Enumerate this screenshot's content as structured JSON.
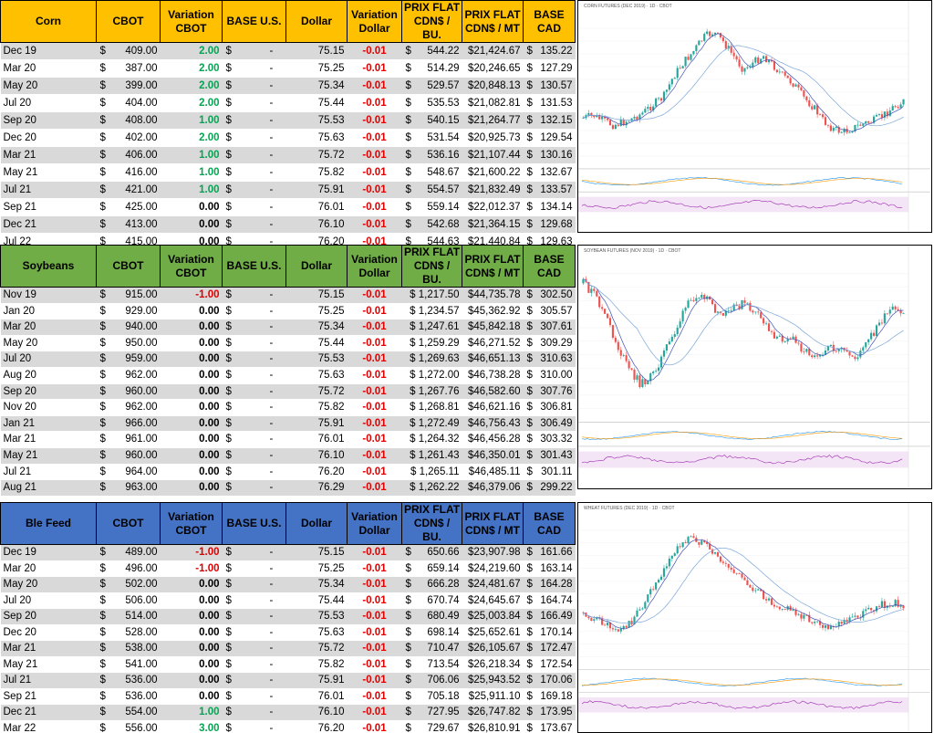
{
  "headers": {
    "cbot": "CBOT",
    "variation_cbot": [
      "Variation",
      "CBOT"
    ],
    "base_us": "BASE U.S.",
    "dollar": "Dollar",
    "variation_dollar": [
      "Variation",
      "Dollar"
    ],
    "prix_bu": [
      "PRIX FLAT",
      "CDN$ / BU."
    ],
    "prix_mt": [
      "PRIX FLAT",
      "CDN$ / MT"
    ],
    "base_cad": "BASE CAD"
  },
  "currency": "$",
  "dash": "-",
  "sections": [
    {
      "key": "corn",
      "name": "Corn",
      "color": "#ffc000",
      "chart_title": "CORN FUTURES (DEC 2019) · 1D · CBOT",
      "rows": [
        {
          "month": "Dec 19",
          "cbot": "409.00",
          "var": "2.00",
          "dollar": "75.15",
          "dvar": "-0.01",
          "bu": "544.22",
          "mt": "$21,424.67",
          "base": "135.22"
        },
        {
          "month": "Mar 20",
          "cbot": "387.00",
          "var": "2.00",
          "dollar": "75.25",
          "dvar": "-0.01",
          "bu": "514.29",
          "mt": "$20,246.65",
          "base": "127.29"
        },
        {
          "month": "May 20",
          "cbot": "399.00",
          "var": "2.00",
          "dollar": "75.34",
          "dvar": "-0.01",
          "bu": "529.57",
          "mt": "$20,848.13",
          "base": "130.57"
        },
        {
          "month": "Jul 20",
          "cbot": "404.00",
          "var": "2.00",
          "dollar": "75.44",
          "dvar": "-0.01",
          "bu": "535.53",
          "mt": "$21,082.81",
          "base": "131.53"
        },
        {
          "month": "Sep 20",
          "cbot": "408.00",
          "var": "1.00",
          "dollar": "75.53",
          "dvar": "-0.01",
          "bu": "540.15",
          "mt": "$21,264.77",
          "base": "132.15"
        },
        {
          "month": "Dec 20",
          "cbot": "402.00",
          "var": "2.00",
          "dollar": "75.63",
          "dvar": "-0.01",
          "bu": "531.54",
          "mt": "$20,925.73",
          "base": "129.54"
        },
        {
          "month": "Mar 21",
          "cbot": "406.00",
          "var": "1.00",
          "dollar": "75.72",
          "dvar": "-0.01",
          "bu": "536.16",
          "mt": "$21,107.44",
          "base": "130.16"
        },
        {
          "month": "May 21",
          "cbot": "416.00",
          "var": "1.00",
          "dollar": "75.82",
          "dvar": "-0.01",
          "bu": "548.67",
          "mt": "$21,600.22",
          "base": "132.67"
        },
        {
          "month": "Jul 21",
          "cbot": "421.00",
          "var": "1.00",
          "dollar": "75.91",
          "dvar": "-0.01",
          "bu": "554.57",
          "mt": "$21,832.49",
          "base": "133.57"
        },
        {
          "month": "Sep 21",
          "cbot": "425.00",
          "var": "0.00",
          "dollar": "76.01",
          "dvar": "-0.01",
          "bu": "559.14",
          "mt": "$22,012.37",
          "base": "134.14"
        },
        {
          "month": "Dec 21",
          "cbot": "413.00",
          "var": "0.00",
          "dollar": "76.10",
          "dvar": "-0.01",
          "bu": "542.68",
          "mt": "$21,364.15",
          "base": "129.68"
        },
        {
          "month": "Jul 22",
          "cbot": "415.00",
          "var": "0.00",
          "dollar": "76.20",
          "dvar": "-0.01",
          "bu": "544.63",
          "mt": "$21,440.84",
          "base": "129.63"
        }
      ]
    },
    {
      "key": "soybeans",
      "name": "Soybeans",
      "color": "#70ad47",
      "chart_title": "SOYBEAN FUTURES (NOV 2019) · 1D · CBOT",
      "rows": [
        {
          "month": "Nov 19",
          "cbot": "915.00",
          "var": "-1.00",
          "dollar": "75.15",
          "dvar": "-0.01",
          "bu": "$ 1,217.50",
          "mt": "$44,735.78",
          "base": "302.50"
        },
        {
          "month": "Jan 20",
          "cbot": "929.00",
          "var": "0.00",
          "dollar": "75.25",
          "dvar": "-0.01",
          "bu": "$ 1,234.57",
          "mt": "$45,362.92",
          "base": "305.57"
        },
        {
          "month": "Mar 20",
          "cbot": "940.00",
          "var": "0.00",
          "dollar": "75.34",
          "dvar": "-0.01",
          "bu": "$ 1,247.61",
          "mt": "$45,842.18",
          "base": "307.61"
        },
        {
          "month": "May 20",
          "cbot": "950.00",
          "var": "0.00",
          "dollar": "75.44",
          "dvar": "-0.01",
          "bu": "$ 1,259.29",
          "mt": "$46,271.52",
          "base": "309.29"
        },
        {
          "month": "Jul 20",
          "cbot": "959.00",
          "var": "0.00",
          "dollar": "75.53",
          "dvar": "-0.01",
          "bu": "$ 1,269.63",
          "mt": "$46,651.13",
          "base": "310.63"
        },
        {
          "month": "Aug 20",
          "cbot": "962.00",
          "var": "0.00",
          "dollar": "75.63",
          "dvar": "-0.01",
          "bu": "$ 1,272.00",
          "mt": "$46,738.28",
          "base": "310.00"
        },
        {
          "month": "Sep 20",
          "cbot": "960.00",
          "var": "0.00",
          "dollar": "75.72",
          "dvar": "-0.01",
          "bu": "$ 1,267.76",
          "mt": "$46,582.60",
          "base": "307.76"
        },
        {
          "month": "Nov 20",
          "cbot": "962.00",
          "var": "0.00",
          "dollar": "75.82",
          "dvar": "-0.01",
          "bu": "$ 1,268.81",
          "mt": "$46,621.16",
          "base": "306.81"
        },
        {
          "month": "Jan 21",
          "cbot": "966.00",
          "var": "0.00",
          "dollar": "75.91",
          "dvar": "-0.01",
          "bu": "$ 1,272.49",
          "mt": "$46,756.43",
          "base": "306.49"
        },
        {
          "month": "Mar 21",
          "cbot": "961.00",
          "var": "0.00",
          "dollar": "76.01",
          "dvar": "-0.01",
          "bu": "$ 1,264.32",
          "mt": "$46,456.28",
          "base": "303.32"
        },
        {
          "month": "May 21",
          "cbot": "960.00",
          "var": "0.00",
          "dollar": "76.10",
          "dvar": "-0.01",
          "bu": "$ 1,261.43",
          "mt": "$46,350.01",
          "base": "301.43"
        },
        {
          "month": "Jul 21",
          "cbot": "964.00",
          "var": "0.00",
          "dollar": "76.20",
          "dvar": "-0.01",
          "bu": "$ 1,265.11",
          "mt": "$46,485.11",
          "base": "301.11"
        },
        {
          "month": "Aug 21",
          "cbot": "963.00",
          "var": "0.00",
          "dollar": "76.29",
          "dvar": "-0.01",
          "bu": "$ 1,262.22",
          "mt": "$46,379.06",
          "base": "299.22"
        }
      ]
    },
    {
      "key": "ble",
      "name": "Ble Feed",
      "color": "#4472c4",
      "chart_title": "WHEAT FUTURES (DEC 2019) · 1D · CBOT",
      "rows": [
        {
          "month": "Dec 19",
          "cbot": "489.00",
          "var": "-1.00",
          "dollar": "75.15",
          "dvar": "-0.01",
          "bu": "650.66",
          "mt": "$23,907.98",
          "base": "161.66"
        },
        {
          "month": "Mar 20",
          "cbot": "496.00",
          "var": "-1.00",
          "dollar": "75.25",
          "dvar": "-0.01",
          "bu": "659.14",
          "mt": "$24,219.60",
          "base": "163.14"
        },
        {
          "month": "May 20",
          "cbot": "502.00",
          "var": "0.00",
          "dollar": "75.34",
          "dvar": "-0.01",
          "bu": "666.28",
          "mt": "$24,481.67",
          "base": "164.28"
        },
        {
          "month": "Jul 20",
          "cbot": "506.00",
          "var": "0.00",
          "dollar": "75.44",
          "dvar": "-0.01",
          "bu": "670.74",
          "mt": "$24,645.67",
          "base": "164.74"
        },
        {
          "month": "Sep 20",
          "cbot": "514.00",
          "var": "0.00",
          "dollar": "75.53",
          "dvar": "-0.01",
          "bu": "680.49",
          "mt": "$25,003.84",
          "base": "166.49"
        },
        {
          "month": "Dec 20",
          "cbot": "528.00",
          "var": "0.00",
          "dollar": "75.63",
          "dvar": "-0.01",
          "bu": "698.14",
          "mt": "$25,652.61",
          "base": "170.14"
        },
        {
          "month": "Mar 21",
          "cbot": "538.00",
          "var": "0.00",
          "dollar": "75.72",
          "dvar": "-0.01",
          "bu": "710.47",
          "mt": "$26,105.67",
          "base": "172.47"
        },
        {
          "month": "May 21",
          "cbot": "541.00",
          "var": "0.00",
          "dollar": "75.82",
          "dvar": "-0.01",
          "bu": "713.54",
          "mt": "$26,218.34",
          "base": "172.54"
        },
        {
          "month": "Jul 21",
          "cbot": "536.00",
          "var": "0.00",
          "dollar": "75.91",
          "dvar": "-0.01",
          "bu": "706.06",
          "mt": "$25,943.52",
          "base": "170.06"
        },
        {
          "month": "Sep 21",
          "cbot": "536.00",
          "var": "0.00",
          "dollar": "76.01",
          "dvar": "-0.01",
          "bu": "705.18",
          "mt": "$25,911.10",
          "base": "169.18"
        },
        {
          "month": "Dec 21",
          "cbot": "554.00",
          "var": "1.00",
          "dollar": "76.10",
          "dvar": "-0.01",
          "bu": "727.95",
          "mt": "$26,747.82",
          "base": "173.95"
        },
        {
          "month": "Mar 22",
          "cbot": "556.00",
          "var": "3.00",
          "dollar": "76.20",
          "dvar": "-0.01",
          "bu": "729.67",
          "mt": "$26,810.91",
          "base": "173.67"
        }
      ]
    }
  ],
  "colors": {
    "positive": "#00a651",
    "negative": "#e00000",
    "row_shade": "#d9d9d9",
    "candle_up": "#26a69a",
    "candle_down": "#ef5350"
  }
}
